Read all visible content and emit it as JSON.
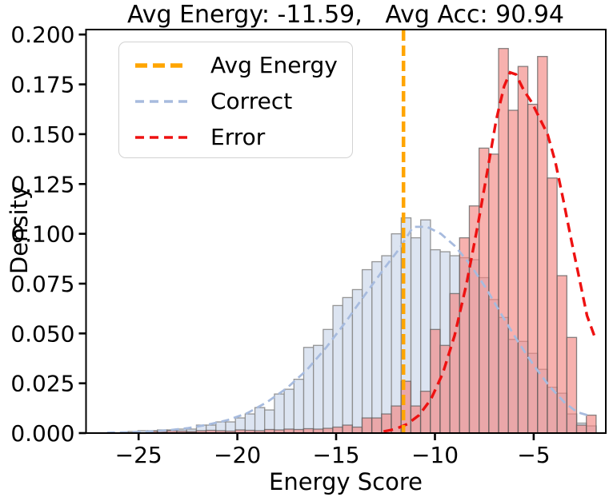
{
  "title": "Avg Energy: -11.59,   Avg Acc: 90.94",
  "axes": {
    "x_label": "Energy Score",
    "y_label": "Density",
    "x_ticks": [
      {
        "v": -25,
        "label": "−25"
      },
      {
        "v": -20,
        "label": "−20"
      },
      {
        "v": -15,
        "label": "−15"
      },
      {
        "v": -10,
        "label": "−10"
      },
      {
        "v": -5,
        "label": "−5"
      }
    ],
    "y_ticks": [
      {
        "v": 0.0,
        "label": "0.000"
      },
      {
        "v": 0.025,
        "label": "0.025"
      },
      {
        "v": 0.05,
        "label": "0.050"
      },
      {
        "v": 0.075,
        "label": "0.075"
      },
      {
        "v": 0.1,
        "label": "0.100"
      },
      {
        "v": 0.125,
        "label": "0.125"
      },
      {
        "v": 0.15,
        "label": "0.150"
      },
      {
        "v": 0.175,
        "label": "0.175"
      },
      {
        "v": 0.2,
        "label": "0.200"
      }
    ]
  },
  "legend": {
    "items": [
      {
        "label": "Avg Energy",
        "color": "#ffa500"
      },
      {
        "label": "Correct",
        "color": "#a7bbde"
      },
      {
        "label": "Error",
        "color": "#ee1111"
      }
    ]
  },
  "colors": {
    "correct_hist_fill": "#dce4f1",
    "correct_hist_edge": "#898989",
    "error_hist_fill": "#f2837f",
    "error_hist_edge": "#5f5f5f",
    "correct_kde_line": "#a7bbde",
    "error_kde_line": "#ee1111",
    "avg_energy_line": "#ffa500",
    "axis": "#000000"
  },
  "chart_data": {
    "type": "bar",
    "subtype": "overlaid-histograms-with-kde",
    "title": "Avg Energy: -11.59,   Avg Acc: 90.94",
    "xlabel": "Energy Score",
    "ylabel": "Density",
    "xlim": [
      -27.66,
      -1.35
    ],
    "ylim": [
      0,
      0.2025
    ],
    "grid": false,
    "legend_position": "upper left",
    "avg_energy": -11.59,
    "avg_acc": 90.94,
    "bin_width": 0.4936,
    "series": [
      {
        "name": "Correct",
        "kind": "hist",
        "linestyle": "solid",
        "start": -25.28,
        "step": 0.4936,
        "heights": [
          0.0008,
          0.0012,
          0.0012,
          0.0016,
          0.0016,
          0.002,
          0.002,
          0.004,
          0.004,
          0.0056,
          0.0056,
          0.0076,
          0.0096,
          0.0128,
          0.0116,
          0.0196,
          0.022,
          0.027,
          0.043,
          0.044,
          0.052,
          0.064,
          0.068,
          0.072,
          0.082,
          0.086,
          0.089,
          0.1,
          0.108,
          0.098,
          0.107,
          0.092,
          0.091,
          0.089,
          0.088,
          0.087,
          0.078,
          0.067,
          0.058,
          0.047,
          0.046,
          0.04,
          0.032,
          0.023,
          0.02,
          0.0096,
          0.005,
          0.0036
        ]
      },
      {
        "name": "Error",
        "kind": "hist",
        "linestyle": "solid",
        "start": -24.3,
        "step": 0.4936,
        "heights": [
          0.001,
          0.0008,
          0.0012,
          0.001,
          0.0008,
          0.0012,
          0.0014,
          0.0012,
          0.001,
          0.0016,
          0.0014,
          0.0012,
          0.0018,
          0.0016,
          0.002,
          0.0018,
          0.0022,
          0.002,
          0.0024,
          0.003,
          0.004,
          0.003,
          0.0076,
          0.0076,
          0.0096,
          0.0136,
          0.026,
          0.0136,
          0.021,
          0.052,
          0.044,
          0.07,
          0.098,
          0.114,
          0.143,
          0.14,
          0.193,
          0.162,
          0.184,
          0.165,
          0.189,
          0.128,
          0.079,
          0.048,
          0.004,
          0.009
        ]
      },
      {
        "name": "Correct KDE",
        "kind": "line",
        "linestyle": "dashed",
        "points": [
          [
            -26.6,
            0.0002
          ],
          [
            -25.5,
            0.0004
          ],
          [
            -24.5,
            0.0008
          ],
          [
            -23.5,
            0.0014
          ],
          [
            -22.5,
            0.0025
          ],
          [
            -21.5,
            0.0042
          ],
          [
            -20.5,
            0.0065
          ],
          [
            -19.5,
            0.01
          ],
          [
            -18.5,
            0.0155
          ],
          [
            -17.5,
            0.0225
          ],
          [
            -16.5,
            0.0315
          ],
          [
            -15.5,
            0.043
          ],
          [
            -14.5,
            0.056
          ],
          [
            -13.5,
            0.07
          ],
          [
            -12.5,
            0.0835
          ],
          [
            -11.8,
            0.0925
          ],
          [
            -11.1,
            0.1035
          ],
          [
            -10.4,
            0.1035
          ],
          [
            -9.7,
            0.1
          ],
          [
            -9.0,
            0.094
          ],
          [
            -8.2,
            0.0845
          ],
          [
            -7.4,
            0.0725
          ],
          [
            -6.6,
            0.059
          ],
          [
            -5.8,
            0.046
          ],
          [
            -5.0,
            0.034
          ],
          [
            -4.2,
            0.0235
          ],
          [
            -3.4,
            0.015
          ],
          [
            -2.8,
            0.0105
          ],
          [
            -2.2,
            0.0088
          ]
        ]
      },
      {
        "name": "Error KDE",
        "kind": "line",
        "linestyle": "dashed",
        "points": [
          [
            -12.6,
            0.0008
          ],
          [
            -12.0,
            0.002
          ],
          [
            -11.4,
            0.0045
          ],
          [
            -10.8,
            0.009
          ],
          [
            -10.2,
            0.017
          ],
          [
            -9.6,
            0.03
          ],
          [
            -9.0,
            0.049
          ],
          [
            -8.4,
            0.075
          ],
          [
            -7.8,
            0.106
          ],
          [
            -7.3,
            0.134
          ],
          [
            -6.9,
            0.157
          ],
          [
            -6.5,
            0.174
          ],
          [
            -6.2,
            0.181
          ],
          [
            -5.9,
            0.18
          ],
          [
            -5.5,
            0.172
          ],
          [
            -5.1,
            0.166
          ],
          [
            -4.7,
            0.158
          ],
          [
            -4.3,
            0.15
          ],
          [
            -3.9,
            0.136
          ],
          [
            -3.5,
            0.117
          ],
          [
            -3.1,
            0.097
          ],
          [
            -2.7,
            0.078
          ],
          [
            -2.3,
            0.059
          ],
          [
            -1.9,
            0.048
          ]
        ]
      },
      {
        "name": "Avg Energy",
        "kind": "vline",
        "linestyle": "dashed",
        "x": -11.59
      }
    ]
  }
}
